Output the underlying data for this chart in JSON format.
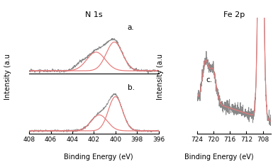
{
  "title_left": "N 1s",
  "title_right": "Fe 2p",
  "xlabel_left": "Binding Energy (eV)",
  "xlabel_right": "Binding Energy (eV)",
  "ylabel_left": "Intensity (a.u",
  "ylabel_right": "Intensity (a.u",
  "label_a": "a.",
  "label_b": "b.",
  "label_c": "c.",
  "n1s_xticks": [
    408,
    406,
    404,
    402,
    400,
    398,
    396
  ],
  "fe2p_xticks": [
    724,
    720,
    716,
    712,
    708
  ],
  "raw_color": "#888888",
  "fit_color": "#e87878",
  "background_color": "#ffffff"
}
